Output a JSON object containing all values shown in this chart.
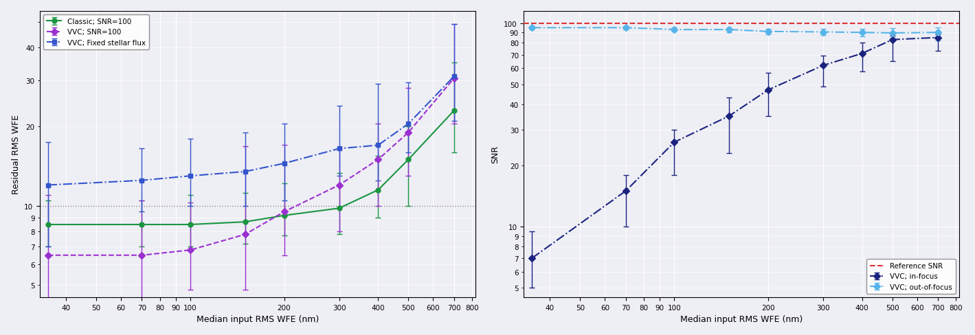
{
  "left": {
    "xlabel": "Median input RMS WFE (nm)",
    "ylabel": "Residual RMS WFE",
    "xlim": [
      33,
      820
    ],
    "ylim": [
      4.5,
      55
    ],
    "hline_y": 10,
    "xticks": [
      40,
      50,
      60,
      70,
      80,
      90,
      100,
      200,
      300,
      400,
      500,
      600,
      700,
      800
    ],
    "series": [
      {
        "label": "Classic; SNR=100",
        "color": "#1a9641",
        "linestyle": "-",
        "marker": "o",
        "x": [
          35,
          70,
          100,
          150,
          200,
          300,
          400,
          500,
          700
        ],
        "y": [
          8.5,
          8.5,
          8.5,
          8.7,
          9.2,
          9.8,
          11.5,
          15.0,
          23.0
        ],
        "yerr_low": [
          1.5,
          1.5,
          1.5,
          1.5,
          1.5,
          2.0,
          2.5,
          5.0,
          7.0
        ],
        "yerr_high": [
          2.0,
          2.0,
          2.5,
          2.5,
          3.0,
          3.5,
          4.0,
          5.0,
          12.0
        ]
      },
      {
        "label": "VVC; SNR=100",
        "color": "#9b30d0",
        "linestyle": "--",
        "marker": "D",
        "x": [
          35,
          70,
          100,
          150,
          200,
          300,
          400,
          500,
          700
        ],
        "y": [
          6.5,
          6.5,
          6.8,
          7.8,
          9.5,
          12.0,
          15.0,
          19.0,
          30.5
        ],
        "yerr_low": [
          4.5,
          2.5,
          2.0,
          3.0,
          3.0,
          4.0,
          5.0,
          6.0,
          10.0
        ],
        "yerr_high": [
          4.5,
          4.0,
          3.5,
          9.0,
          7.5,
          4.5,
          5.5,
          9.0,
          18.5
        ]
      },
      {
        "label": "VVC; Fixed stellar flux",
        "color": "#3355cc",
        "linestyle": "-.",
        "marker": "s",
        "x": [
          35,
          70,
          100,
          150,
          200,
          300,
          400,
          500,
          700
        ],
        "y": [
          12.0,
          12.5,
          13.0,
          13.5,
          14.5,
          16.5,
          17.0,
          20.5,
          31.0
        ],
        "yerr_low": [
          5.0,
          3.0,
          3.0,
          3.5,
          4.0,
          3.5,
          4.5,
          4.5,
          10.0
        ],
        "yerr_high": [
          5.5,
          4.0,
          5.0,
          5.5,
          6.0,
          7.5,
          12.0,
          9.0,
          18.0
        ]
      }
    ]
  },
  "right": {
    "xlabel": "Median input RMS WFE (nm)",
    "ylabel": "SNR",
    "xlim": [
      33,
      820
    ],
    "ylim": [
      4.5,
      115
    ],
    "ref_snr": 100,
    "xticks": [
      40,
      50,
      60,
      70,
      80,
      90,
      100,
      200,
      300,
      400,
      500,
      600,
      700,
      800
    ],
    "series": [
      {
        "label": "VVC; in-focus",
        "color": "#1a237e",
        "linestyle": "-.",
        "marker": "D",
        "x": [
          35,
          70,
          100,
          150,
          200,
          300,
          400,
          500,
          700
        ],
        "y": [
          7.0,
          15.0,
          26.0,
          35.0,
          47.0,
          62.0,
          71.0,
          83.0,
          85.0
        ],
        "yerr_low": [
          2.0,
          5.0,
          8.0,
          12.0,
          12.0,
          13.0,
          13.0,
          18.0,
          12.0
        ],
        "yerr_high": [
          2.5,
          3.0,
          4.0,
          8.0,
          10.0,
          7.0,
          9.0,
          4.0,
          3.0
        ]
      },
      {
        "label": "VVC; out-of-focus",
        "color": "#56b4e9",
        "linestyle": "-.",
        "marker": "D",
        "x": [
          35,
          70,
          100,
          150,
          200,
          300,
          400,
          500,
          700
        ],
        "y": [
          95.0,
          95.0,
          93.0,
          93.0,
          91.0,
          90.5,
          90.0,
          89.5,
          90.0
        ],
        "yerr_low": [
          2.0,
          2.0,
          2.0,
          2.5,
          3.0,
          3.0,
          4.0,
          5.0,
          8.0
        ],
        "yerr_high": [
          2.0,
          2.0,
          2.0,
          2.5,
          3.0,
          3.0,
          4.0,
          5.0,
          5.0
        ]
      }
    ]
  },
  "bg_color": "#eeeef5",
  "grid_color": "#ffffff"
}
